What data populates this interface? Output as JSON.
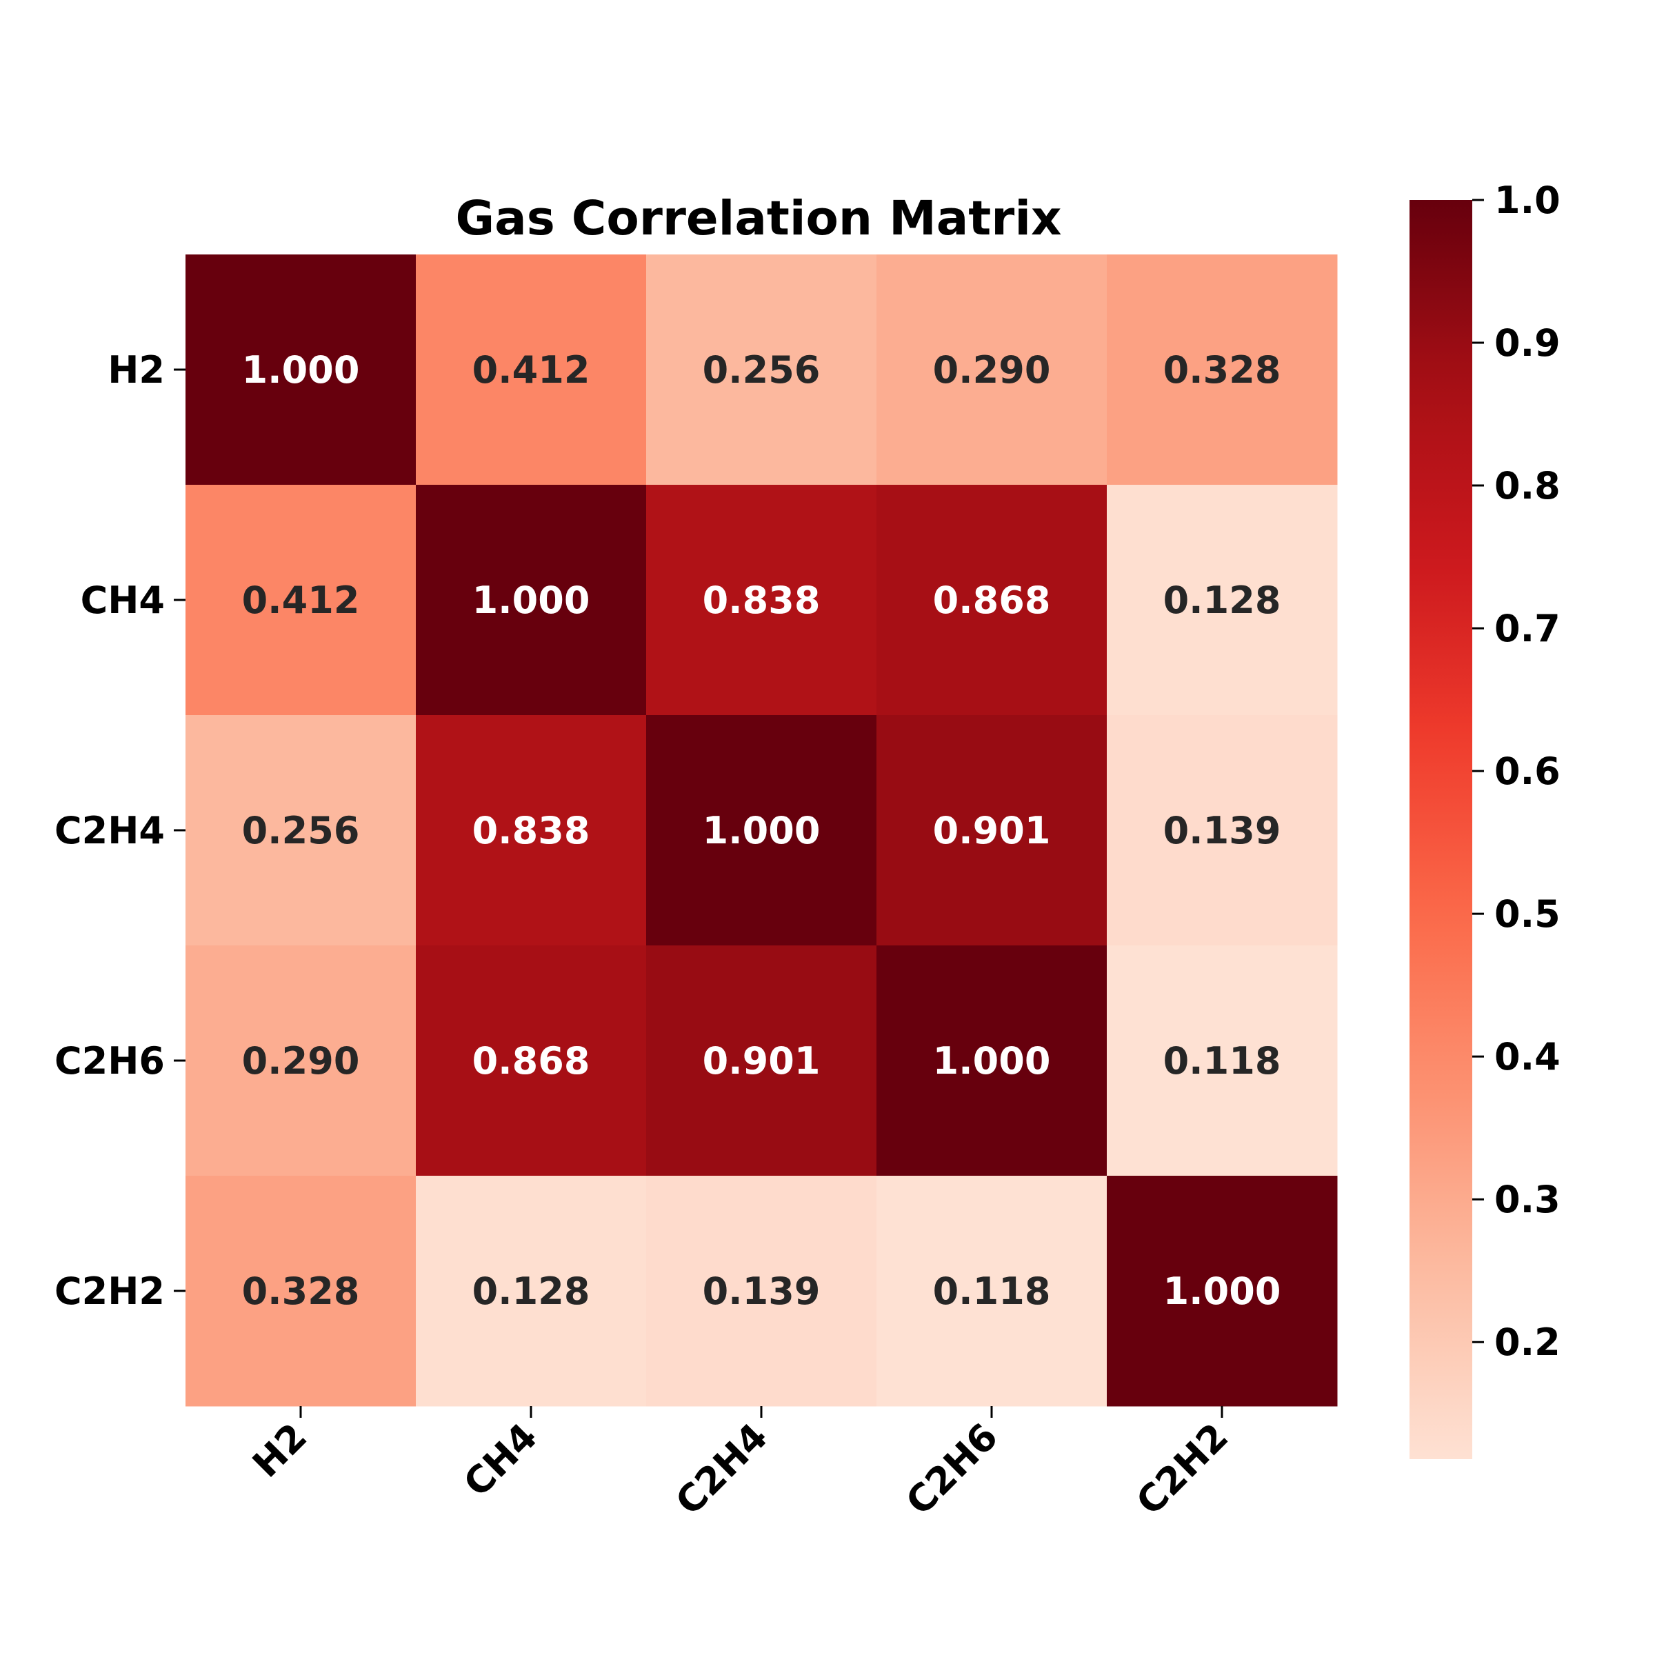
{
  "chart_data": {
    "type": "heatmap",
    "title": "Gas Correlation Matrix",
    "xlabel": "",
    "ylabel": "",
    "x_categories": [
      "H2",
      "CH4",
      "C2H4",
      "C2H6",
      "C2H2"
    ],
    "y_categories": [
      "H2",
      "CH4",
      "C2H4",
      "C2H6",
      "C2H2"
    ],
    "values": [
      [
        1.0,
        0.412,
        0.256,
        0.29,
        0.328
      ],
      [
        0.412,
        1.0,
        0.838,
        0.868,
        0.128
      ],
      [
        0.256,
        0.838,
        1.0,
        0.901,
        0.139
      ],
      [
        0.29,
        0.868,
        0.901,
        1.0,
        0.118
      ],
      [
        0.328,
        0.128,
        0.139,
        0.118,
        1.0
      ]
    ],
    "value_format_decimals": 3,
    "colormap": "Reds",
    "color_range": [
      0.118,
      1.0
    ],
    "colorbar": {
      "ticks": [
        0.2,
        0.3,
        0.4,
        0.5,
        0.6,
        0.7,
        0.8,
        0.9,
        1.0
      ],
      "tick_labels": [
        "0.2",
        "0.3",
        "0.4",
        "0.5",
        "0.6",
        "0.7",
        "0.8",
        "0.9",
        "1.0"
      ],
      "placement": "right"
    },
    "grid": false
  }
}
